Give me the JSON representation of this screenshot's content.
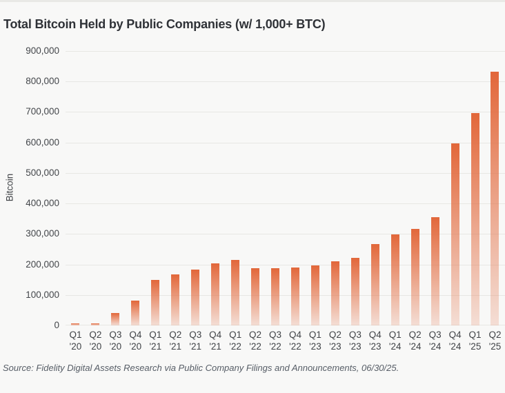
{
  "page": {
    "title": "Total Bitcoin Held by Public Companies (w/ 1,000+ BTC)",
    "source_note": "Source: Fidelity Digital Assets Research via Public Company Filings and Announcements, 06/30/25."
  },
  "colors": {
    "background": "#f8f8f7",
    "title_text": "#2f3237",
    "axis_text": "#43464a",
    "gridline": "#e7e7e4",
    "bar_orange": "#e2673a",
    "source_text": "#565d66"
  },
  "chart_data": {
    "type": "bar",
    "title": "Total Bitcoin Held by Public Companies (w/ 1,000+ BTC)",
    "xlabel": "",
    "ylabel": "Bitcoin",
    "ylim": [
      0,
      900000
    ],
    "y_tick_step": 100000,
    "grid": true,
    "legend": false,
    "categories": [
      "Q1 '20",
      "Q2 '20",
      "Q3 '20",
      "Q4 '20",
      "Q1 '21",
      "Q2 '21",
      "Q3 '21",
      "Q4 '21",
      "Q1 '22",
      "Q2 '22",
      "Q3 '22",
      "Q4 '22",
      "Q1 '23",
      "Q2 '23",
      "Q3 '23",
      "Q4 '23",
      "Q1 '24",
      "Q2 '24",
      "Q3 '24",
      "Q4 '24",
      "Q1 '25",
      "Q2 '25"
    ],
    "values": [
      7000,
      7000,
      40000,
      82000,
      150000,
      168000,
      183000,
      203000,
      215000,
      187000,
      188000,
      190000,
      197000,
      210000,
      222000,
      267000,
      298000,
      317000,
      355000,
      598000,
      696000,
      832000
    ],
    "source": "Source: Fidelity Digital Assets Research via Public Company Filings and Announcements, 06/30/25."
  }
}
